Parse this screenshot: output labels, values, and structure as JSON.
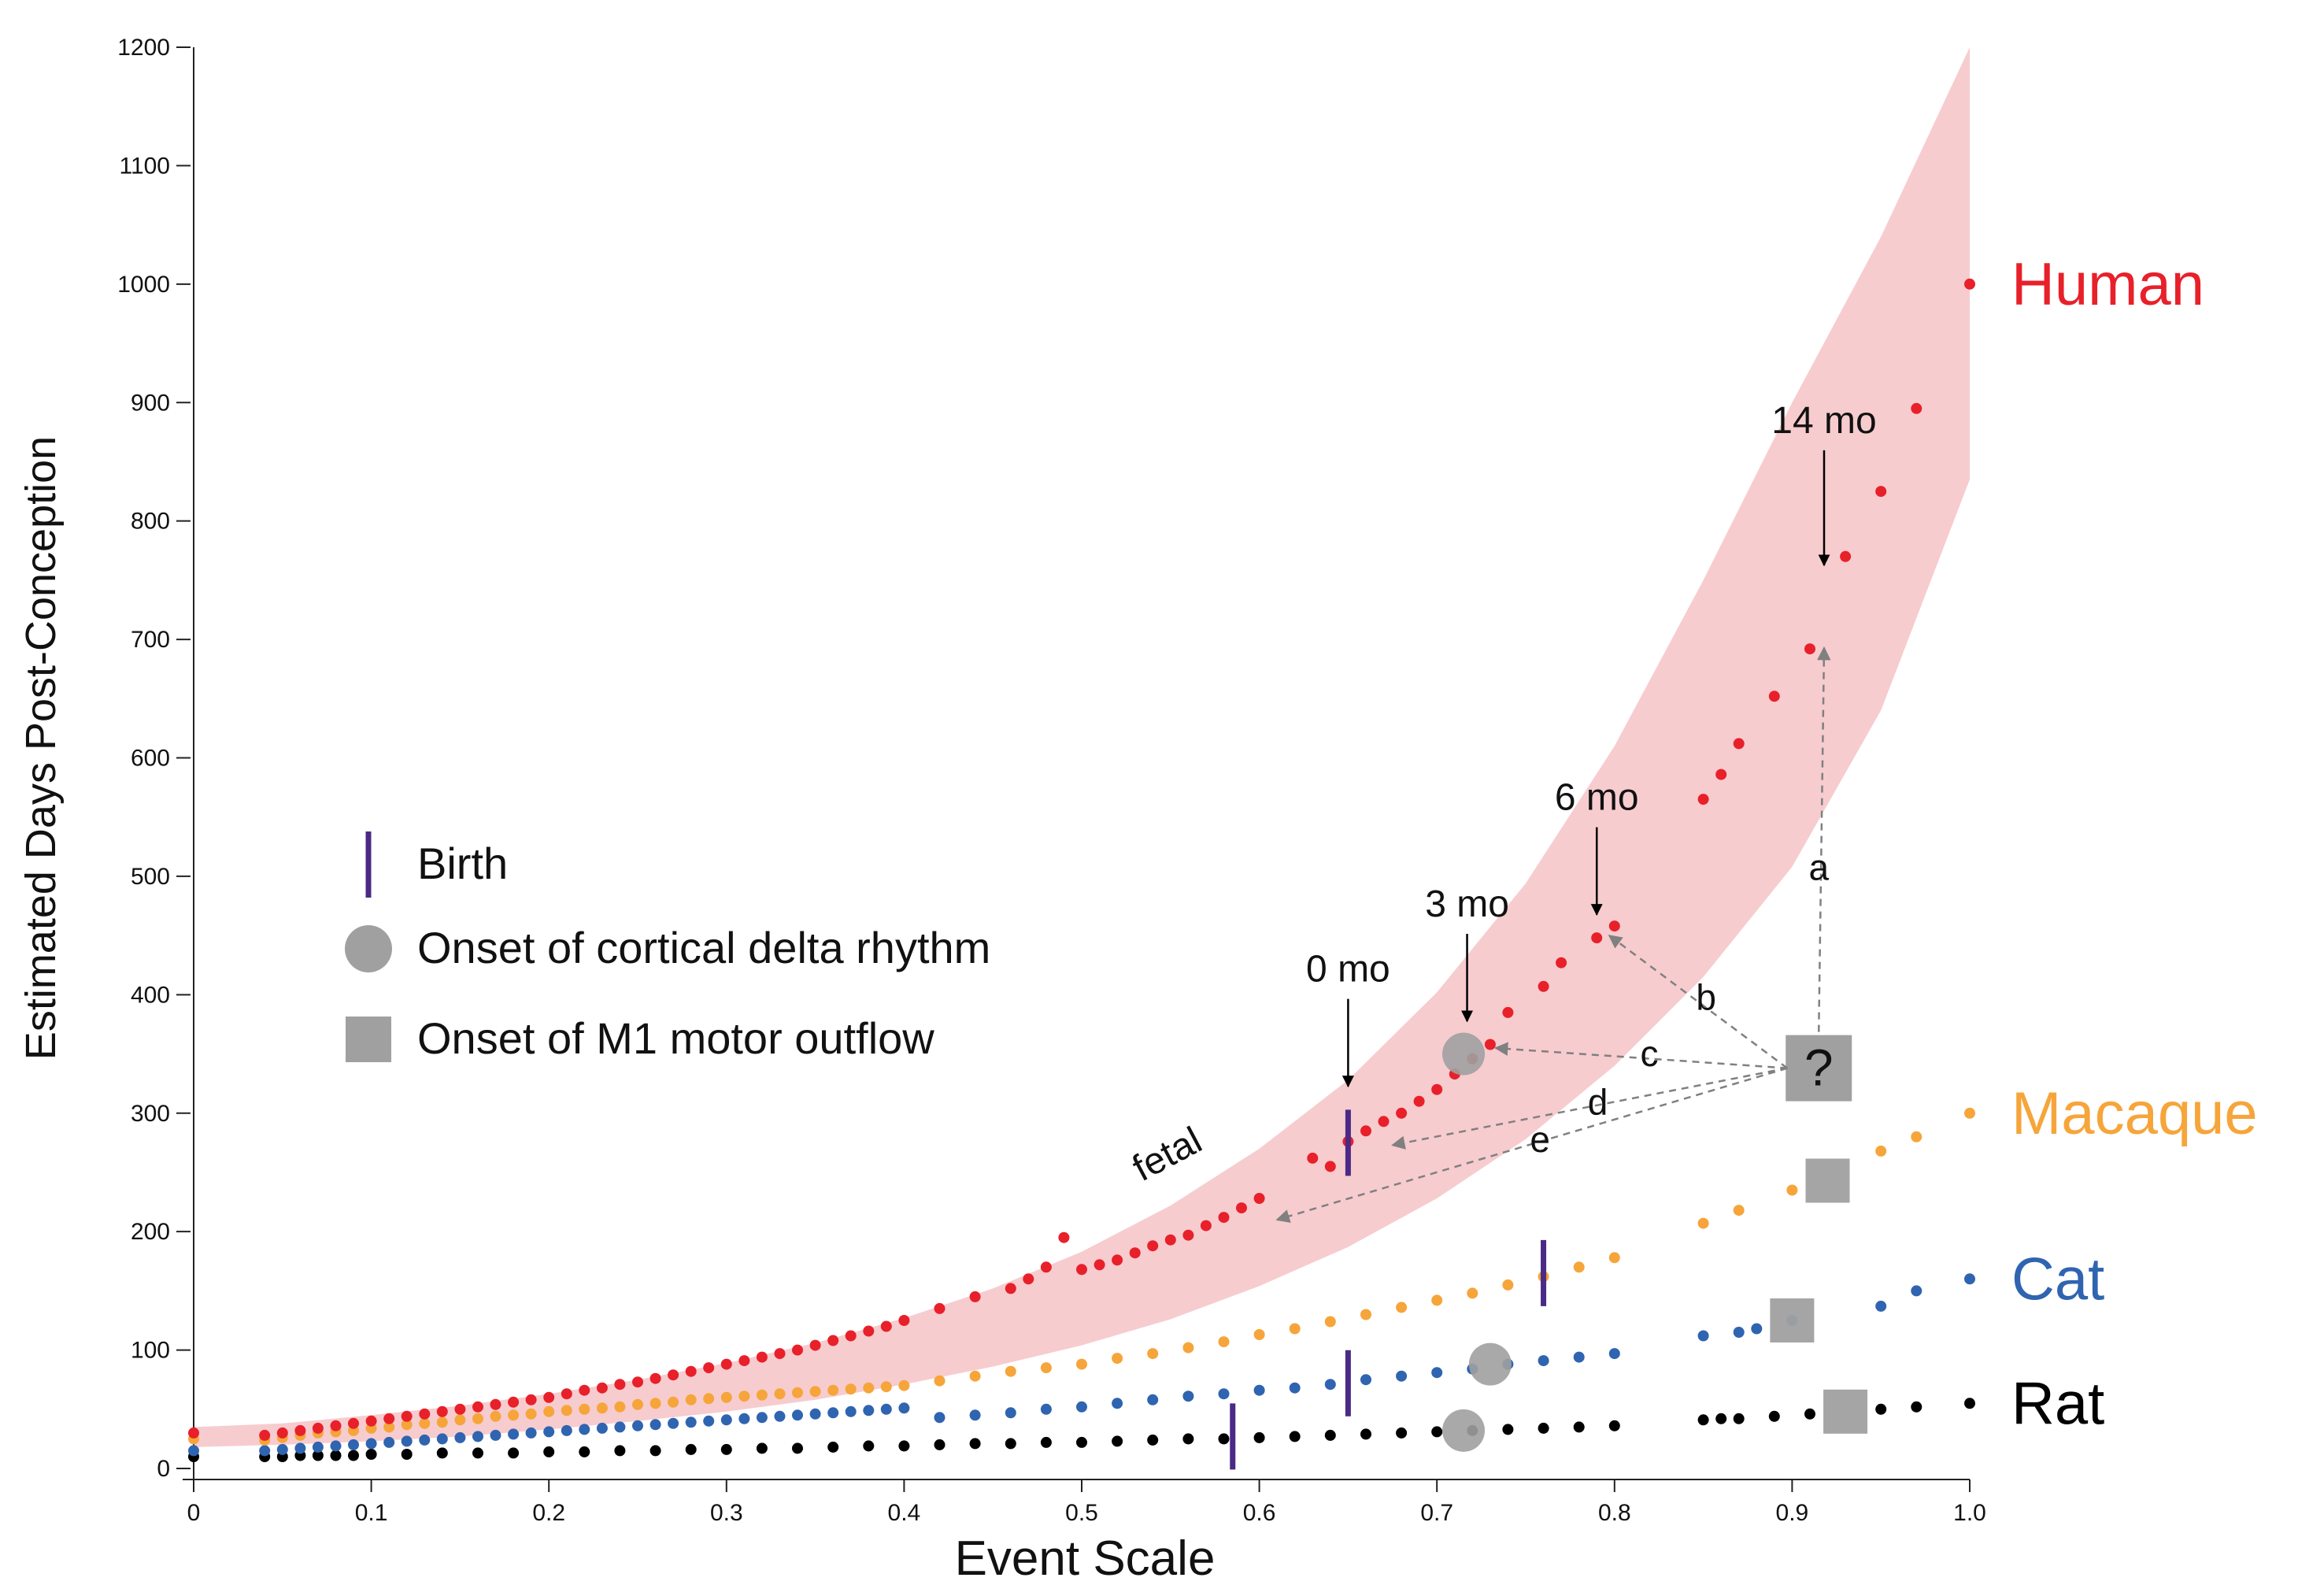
{
  "chart_data": {
    "type": "scatter",
    "title": "",
    "xlabel": "Event Scale",
    "ylabel": "Estimated Days Post-Conception",
    "xlim": [
      0,
      1.0
    ],
    "ylim": [
      0,
      1200
    ],
    "x_ticks": [
      0,
      0.1,
      0.2,
      0.3,
      0.4,
      0.5,
      0.6,
      0.7,
      0.8,
      0.9,
      1.0
    ],
    "x_tick_labels": [
      "0",
      "0.1",
      "0.2",
      "0.3",
      "0.4",
      "0.5",
      "0.6",
      "0.7",
      "0.8",
      "0.9",
      "1.0"
    ],
    "y_ticks": [
      0,
      100,
      200,
      300,
      400,
      500,
      600,
      700,
      800,
      900,
      1000,
      1100,
      1200
    ],
    "y_tick_labels": [
      "0",
      "100",
      "200",
      "300",
      "400",
      "500",
      "600",
      "700",
      "800",
      "900",
      "1000",
      "1100",
      "1200"
    ],
    "grid": false,
    "band": {
      "name": "Human confidence band",
      "color": "#f7cccf",
      "x": [
        0,
        0.05,
        0.1,
        0.15,
        0.2,
        0.25,
        0.3,
        0.35,
        0.4,
        0.45,
        0.5,
        0.55,
        0.6,
        0.65,
        0.7,
        0.75,
        0.8,
        0.85,
        0.9,
        0.95,
        1.0
      ],
      "lower": [
        18,
        20,
        23,
        27,
        33,
        40,
        48,
        58,
        71,
        86,
        104,
        126,
        154,
        187,
        228,
        278,
        340,
        415,
        508,
        640,
        835
      ],
      "upper": [
        35,
        38,
        45,
        53,
        63,
        75,
        89,
        106,
        127,
        152,
        183,
        222,
        270,
        328,
        402,
        494,
        610,
        750,
        900,
        1040,
        1200
      ]
    },
    "series": [
      {
        "name": "Human",
        "color": "#e8202a",
        "x": [
          0,
          0.04,
          0.05,
          0.06,
          0.07,
          0.08,
          0.09,
          0.1,
          0.11,
          0.12,
          0.13,
          0.14,
          0.15,
          0.16,
          0.17,
          0.18,
          0.19,
          0.2,
          0.21,
          0.22,
          0.23,
          0.24,
          0.25,
          0.26,
          0.27,
          0.28,
          0.29,
          0.3,
          0.31,
          0.32,
          0.33,
          0.34,
          0.35,
          0.36,
          0.37,
          0.38,
          0.39,
          0.4,
          0.42,
          0.44,
          0.46,
          0.47,
          0.48,
          0.49,
          0.5,
          0.51,
          0.52,
          0.53,
          0.54,
          0.55,
          0.56,
          0.57,
          0.58,
          0.59,
          0.6,
          0.63,
          0.64,
          0.65,
          0.66,
          0.67,
          0.68,
          0.69,
          0.7,
          0.71,
          0.72,
          0.73,
          0.74,
          0.76,
          0.77,
          0.79,
          0.8,
          0.85,
          0.86,
          0.87,
          0.89,
          0.91,
          0.93,
          0.95,
          0.97,
          1.0
        ],
        "values": [
          30,
          28,
          30,
          32,
          34,
          36,
          38,
          40,
          42,
          44,
          46,
          48,
          50,
          52,
          54,
          56,
          58,
          60,
          63,
          66,
          68,
          71,
          73,
          76,
          79,
          82,
          85,
          88,
          91,
          94,
          97,
          100,
          104,
          108,
          112,
          116,
          120,
          125,
          135,
          145,
          152,
          160,
          170,
          195,
          168,
          172,
          176,
          182,
          188,
          193,
          197,
          205,
          212,
          220,
          228,
          262,
          255,
          276,
          285,
          293,
          300,
          310,
          320,
          333,
          346,
          358,
          385,
          407,
          427,
          448,
          458,
          565,
          586,
          612,
          652,
          692,
          770,
          825,
          895,
          1000
        ]
      },
      {
        "name": "Macaque",
        "color": "#f6a53a",
        "x": [
          0,
          0.04,
          0.05,
          0.06,
          0.07,
          0.08,
          0.09,
          0.1,
          0.11,
          0.12,
          0.13,
          0.14,
          0.15,
          0.16,
          0.17,
          0.18,
          0.19,
          0.2,
          0.21,
          0.22,
          0.23,
          0.24,
          0.25,
          0.26,
          0.27,
          0.28,
          0.29,
          0.3,
          0.31,
          0.32,
          0.33,
          0.34,
          0.35,
          0.36,
          0.37,
          0.38,
          0.39,
          0.4,
          0.42,
          0.44,
          0.46,
          0.48,
          0.5,
          0.52,
          0.54,
          0.56,
          0.58,
          0.6,
          0.62,
          0.64,
          0.66,
          0.68,
          0.7,
          0.72,
          0.74,
          0.76,
          0.78,
          0.8,
          0.85,
          0.87,
          0.9,
          0.95,
          0.97,
          1.0
        ],
        "values": [
          25,
          24,
          26,
          28,
          30,
          31,
          32,
          34,
          35,
          37,
          38,
          39,
          41,
          42,
          44,
          45,
          46,
          48,
          49,
          50,
          51,
          52,
          54,
          55,
          56,
          58,
          59,
          60,
          61,
          62,
          63,
          64,
          65,
          66,
          67,
          68,
          69,
          70,
          74,
          78,
          82,
          85,
          88,
          93,
          97,
          102,
          107,
          113,
          118,
          124,
          130,
          136,
          142,
          148,
          155,
          162,
          170,
          178,
          207,
          218,
          235,
          268,
          280,
          300
        ]
      },
      {
        "name": "Cat",
        "color": "#2f64b0",
        "x": [
          0,
          0.04,
          0.05,
          0.06,
          0.07,
          0.08,
          0.09,
          0.1,
          0.11,
          0.12,
          0.13,
          0.14,
          0.15,
          0.16,
          0.17,
          0.18,
          0.19,
          0.2,
          0.21,
          0.22,
          0.23,
          0.24,
          0.25,
          0.26,
          0.27,
          0.28,
          0.29,
          0.3,
          0.31,
          0.32,
          0.33,
          0.34,
          0.35,
          0.36,
          0.37,
          0.38,
          0.39,
          0.4,
          0.42,
          0.44,
          0.46,
          0.48,
          0.5,
          0.52,
          0.54,
          0.56,
          0.58,
          0.6,
          0.62,
          0.64,
          0.66,
          0.68,
          0.7,
          0.72,
          0.74,
          0.76,
          0.78,
          0.8,
          0.85,
          0.87,
          0.88,
          0.9,
          0.95,
          0.97,
          1.0
        ],
        "values": [
          15,
          15,
          16,
          17,
          18,
          19,
          20,
          21,
          22,
          23,
          24,
          25,
          26,
          27,
          28,
          29,
          30,
          31,
          32,
          33,
          34,
          35,
          36,
          37,
          38,
          39,
          40,
          41,
          42,
          43,
          44,
          45,
          46,
          47,
          48,
          49,
          50,
          51,
          43,
          45,
          47,
          50,
          52,
          55,
          58,
          61,
          63,
          66,
          68,
          71,
          75,
          78,
          81,
          84,
          88,
          91,
          94,
          97,
          112,
          115,
          118,
          125,
          137,
          150,
          160
        ]
      },
      {
        "name": "Rat",
        "color": "#000000",
        "x": [
          0,
          0.04,
          0.05,
          0.06,
          0.07,
          0.08,
          0.09,
          0.1,
          0.12,
          0.14,
          0.16,
          0.18,
          0.2,
          0.22,
          0.24,
          0.26,
          0.28,
          0.3,
          0.32,
          0.34,
          0.36,
          0.38,
          0.4,
          0.42,
          0.44,
          0.46,
          0.48,
          0.5,
          0.52,
          0.54,
          0.56,
          0.58,
          0.6,
          0.62,
          0.64,
          0.66,
          0.68,
          0.7,
          0.72,
          0.74,
          0.76,
          0.78,
          0.8,
          0.85,
          0.86,
          0.87,
          0.89,
          0.91,
          0.95,
          0.97,
          1.0
        ],
        "values": [
          10,
          10,
          10,
          11,
          11,
          11,
          11,
          12,
          12,
          13,
          13,
          13,
          14,
          14,
          15,
          15,
          16,
          16,
          17,
          17,
          18,
          19,
          19,
          20,
          21,
          21,
          22,
          22,
          23,
          24,
          25,
          25,
          26,
          27,
          28,
          29,
          30,
          31,
          32,
          33,
          34,
          35,
          36,
          41,
          42,
          42,
          44,
          46,
          50,
          52,
          55
        ]
      }
    ],
    "series_labels": [
      "Human",
      "Macaque",
      "Cat",
      "Rat"
    ],
    "birth_markers": [
      {
        "series": "Human",
        "x": 0.65,
        "y": 275
      },
      {
        "series": "Macaque",
        "x": 0.76,
        "y": 165
      },
      {
        "series": "Cat",
        "x": 0.65,
        "y": 72
      },
      {
        "series": "Rat",
        "x": 0.585,
        "y": 27
      }
    ],
    "delta_onset_markers": [
      {
        "series": "Human",
        "x": 0.715,
        "y": 350
      },
      {
        "series": "Cat",
        "x": 0.73,
        "y": 88
      },
      {
        "series": "Rat",
        "x": 0.715,
        "y": 32
      }
    ],
    "m1_onset_markers": [
      {
        "series": "Macaque",
        "x": 0.92,
        "y": 243
      },
      {
        "series": "Cat",
        "x": 0.9,
        "y": 125
      },
      {
        "series": "Rat",
        "x": 0.93,
        "y": 48
      }
    ],
    "unknown_marker": {
      "label": "?",
      "x": 0.915,
      "y": 338
    },
    "age_annotations": [
      {
        "label": "0 mo",
        "x": 0.65,
        "y": 320
      },
      {
        "label": "3 mo",
        "x": 0.717,
        "y": 375
      },
      {
        "label": "6 mo",
        "x": 0.79,
        "y": 465
      },
      {
        "label": "14 mo",
        "x": 0.918,
        "y": 760
      }
    ],
    "candidate_arrows": [
      {
        "label": "a",
        "to_x": 0.918,
        "to_y": 693
      },
      {
        "label": "b",
        "to_x": 0.797,
        "to_y": 450
      },
      {
        "label": "c",
        "to_x": 0.733,
        "to_y": 355
      },
      {
        "label": "d",
        "to_x": 0.675,
        "to_y": 273
      },
      {
        "label": "e",
        "to_x": 0.61,
        "to_y": 210
      }
    ],
    "fetal_label": "fetal",
    "legend": {
      "placement": "center-left",
      "entries": [
        {
          "label": "Birth",
          "marker": "vertical-line",
          "color": "#4a2a85"
        },
        {
          "label": "Onset of cortical delta rhythm",
          "marker": "circle",
          "color": "#a0a0a0"
        },
        {
          "label": "Onset of M1 motor outflow",
          "marker": "square",
          "color": "#a0a0a0"
        }
      ]
    }
  }
}
